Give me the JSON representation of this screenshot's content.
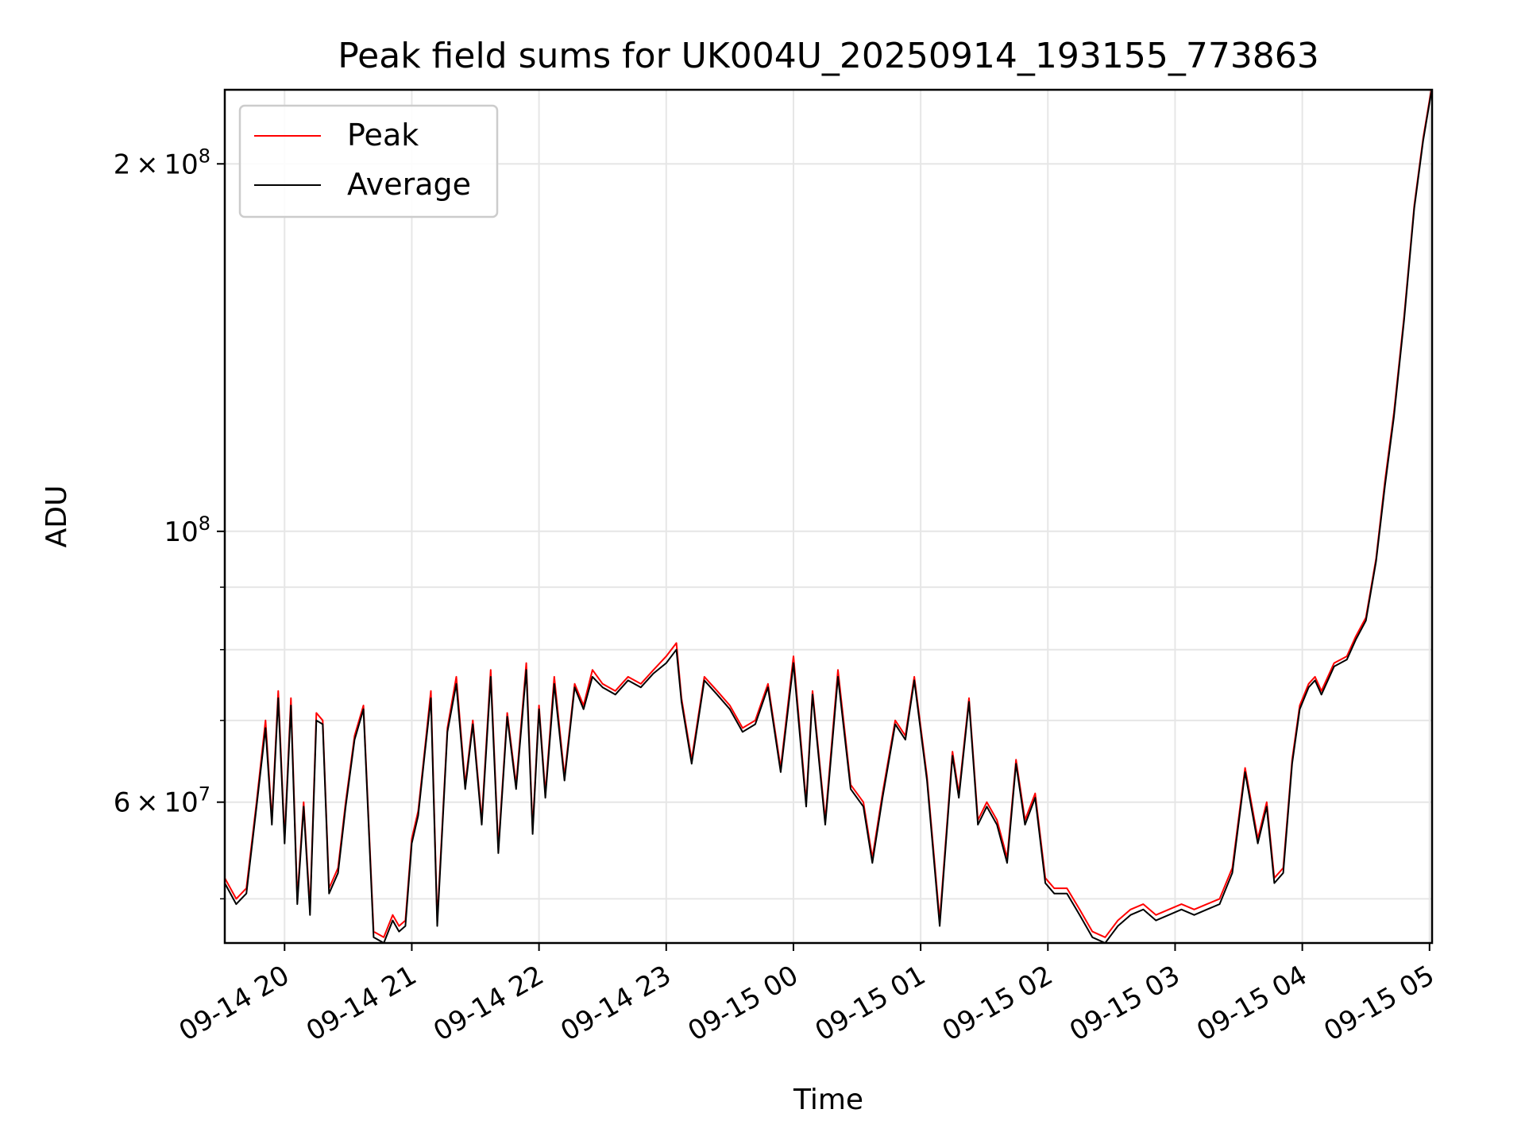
{
  "chart_data": {
    "type": "line",
    "title": "Peak field sums for UK004U_20250914_193155_773863",
    "xlabel": "Time",
    "ylabel": "ADU",
    "x_unit": "hour",
    "x_start": "09-14 19:32",
    "x_end": "09-15 04:59",
    "xlim": [
      19.53,
      29.02
    ],
    "yscale": "log",
    "ylim": [
      46000000,
      230000000
    ],
    "grid": true,
    "legend_position": "top-left",
    "x_ticks": [
      {
        "value": 20,
        "label": "09-14 20"
      },
      {
        "value": 21,
        "label": "09-14 21"
      },
      {
        "value": 22,
        "label": "09-14 22"
      },
      {
        "value": 23,
        "label": "09-14 23"
      },
      {
        "value": 24,
        "label": "09-15 00"
      },
      {
        "value": 25,
        "label": "09-15 01"
      },
      {
        "value": 26,
        "label": "09-15 02"
      },
      {
        "value": 27,
        "label": "09-15 03"
      },
      {
        "value": 28,
        "label": "09-15 04"
      },
      {
        "value": 29,
        "label": "09-15 05"
      }
    ],
    "y_ticks": [
      {
        "value": 60000000,
        "mantissa": "6",
        "base": "10",
        "exponent": "7"
      },
      {
        "value": 100000000,
        "mantissa": "",
        "base": "10",
        "exponent": "8"
      },
      {
        "value": 200000000,
        "mantissa": "2",
        "base": "10",
        "exponent": "8"
      }
    ],
    "y_minor_ticks": [
      50000000,
      70000000,
      80000000,
      90000000
    ],
    "series": [
      {
        "name": "Peak",
        "color": "#ff0000",
        "x": [
          19.53,
          19.62,
          19.7,
          19.78,
          19.85,
          19.9,
          19.95,
          20.0,
          20.05,
          20.1,
          20.15,
          20.2,
          20.25,
          20.3,
          20.35,
          20.42,
          20.48,
          20.55,
          20.62,
          20.7,
          20.78,
          20.85,
          20.9,
          20.95,
          21.0,
          21.05,
          21.1,
          21.15,
          21.2,
          21.28,
          21.35,
          21.42,
          21.48,
          21.55,
          21.62,
          21.68,
          21.75,
          21.82,
          21.9,
          21.95,
          22.0,
          22.05,
          22.12,
          22.2,
          22.28,
          22.35,
          22.42,
          22.5,
          22.6,
          22.7,
          22.8,
          22.9,
          23.0,
          23.08,
          23.12,
          23.2,
          23.3,
          23.4,
          23.5,
          23.6,
          23.7,
          23.8,
          23.9,
          24.0,
          24.1,
          24.15,
          24.25,
          24.35,
          24.45,
          24.55,
          24.62,
          24.7,
          24.8,
          24.88,
          24.95,
          25.05,
          25.15,
          25.25,
          25.3,
          25.38,
          25.45,
          25.52,
          25.6,
          25.68,
          25.75,
          25.82,
          25.9,
          25.98,
          26.05,
          26.15,
          26.25,
          26.35,
          26.45,
          26.55,
          26.65,
          26.75,
          26.85,
          26.95,
          27.05,
          27.15,
          27.25,
          27.35,
          27.45,
          27.55,
          27.65,
          27.72,
          27.78,
          27.85,
          27.92,
          27.98,
          28.05,
          28.1,
          28.15,
          28.25,
          28.35,
          28.42,
          28.5,
          28.58,
          28.65,
          28.72,
          28.8,
          28.88,
          28.95,
          29.02
        ],
        "y": [
          52000000,
          50000000,
          51000000,
          60000000,
          70000000,
          58000000,
          74000000,
          56000000,
          73000000,
          50000000,
          60000000,
          49000000,
          71000000,
          70000000,
          51000000,
          53000000,
          60000000,
          68000000,
          72000000,
          47000000,
          46500000,
          48500000,
          47500000,
          48000000,
          56000000,
          59000000,
          66000000,
          74000000,
          48000000,
          69000000,
          76000000,
          62000000,
          70000000,
          58000000,
          77000000,
          55000000,
          71000000,
          62000000,
          78000000,
          57000000,
          72000000,
          61000000,
          76000000,
          63000000,
          75000000,
          72000000,
          77000000,
          75000000,
          74000000,
          76000000,
          75000000,
          77000000,
          79000000,
          81000000,
          73000000,
          65000000,
          76000000,
          74000000,
          72000000,
          69000000,
          70000000,
          75000000,
          64000000,
          79000000,
          60000000,
          74000000,
          58000000,
          77000000,
          62000000,
          60000000,
          54000000,
          61000000,
          70000000,
          68000000,
          76000000,
          63000000,
          48000000,
          66000000,
          61000000,
          73000000,
          58000000,
          60000000,
          58000000,
          54000000,
          65000000,
          58000000,
          61000000,
          52000000,
          51000000,
          51000000,
          49000000,
          47000000,
          46500000,
          48000000,
          49000000,
          49500000,
          48500000,
          49000000,
          49500000,
          49000000,
          49500000,
          50000000,
          53000000,
          64000000,
          56000000,
          60000000,
          52000000,
          53000000,
          65000000,
          72000000,
          75000000,
          76000000,
          74000000,
          78000000,
          79000000,
          82000000,
          85000000,
          95000000,
          110000000,
          125000000,
          150000000,
          185000000,
          210000000,
          232000000
        ]
      },
      {
        "name": "Average",
        "color": "#000000",
        "x": [
          19.53,
          19.62,
          19.7,
          19.78,
          19.85,
          19.9,
          19.95,
          20.0,
          20.05,
          20.1,
          20.15,
          20.2,
          20.25,
          20.3,
          20.35,
          20.42,
          20.48,
          20.55,
          20.62,
          20.7,
          20.78,
          20.85,
          20.9,
          20.95,
          21.0,
          21.05,
          21.1,
          21.15,
          21.2,
          21.28,
          21.35,
          21.42,
          21.48,
          21.55,
          21.62,
          21.68,
          21.75,
          21.82,
          21.9,
          21.95,
          22.0,
          22.05,
          22.12,
          22.2,
          22.28,
          22.35,
          22.42,
          22.5,
          22.6,
          22.7,
          22.8,
          22.9,
          23.0,
          23.08,
          23.12,
          23.2,
          23.3,
          23.4,
          23.5,
          23.6,
          23.7,
          23.8,
          23.9,
          24.0,
          24.1,
          24.15,
          24.25,
          24.35,
          24.45,
          24.55,
          24.62,
          24.7,
          24.8,
          24.88,
          24.95,
          25.05,
          25.15,
          25.25,
          25.3,
          25.38,
          25.45,
          25.52,
          25.6,
          25.68,
          25.75,
          25.82,
          25.9,
          25.98,
          26.05,
          26.15,
          26.25,
          26.35,
          26.45,
          26.55,
          26.65,
          26.75,
          26.85,
          26.95,
          27.05,
          27.15,
          27.25,
          27.35,
          27.45,
          27.55,
          27.65,
          27.72,
          27.78,
          27.85,
          27.92,
          27.98,
          28.05,
          28.1,
          28.15,
          28.25,
          28.35,
          28.42,
          28.5,
          28.58,
          28.65,
          28.72,
          28.8,
          28.88,
          28.95,
          29.02
        ],
        "y": [
          51500000,
          49500000,
          50500000,
          59500000,
          69000000,
          57500000,
          73000000,
          55500000,
          72000000,
          49500000,
          59500000,
          48500000,
          70000000,
          69500000,
          50500000,
          52500000,
          59500000,
          67500000,
          71500000,
          46500000,
          46000000,
          48000000,
          47000000,
          47500000,
          55500000,
          58500000,
          65500000,
          73000000,
          47500000,
          68500000,
          75000000,
          61500000,
          69500000,
          57500000,
          76000000,
          54500000,
          70500000,
          61500000,
          77000000,
          56500000,
          71500000,
          60500000,
          75000000,
          62500000,
          74500000,
          71500000,
          76000000,
          74500000,
          73500000,
          75500000,
          74500000,
          76500000,
          78000000,
          80000000,
          72500000,
          64500000,
          75500000,
          73500000,
          71500000,
          68500000,
          69500000,
          74500000,
          63500000,
          78000000,
          59500000,
          73500000,
          57500000,
          76000000,
          61500000,
          59500000,
          53500000,
          60500000,
          69500000,
          67500000,
          75500000,
          62500000,
          47500000,
          65500000,
          60500000,
          72500000,
          57500000,
          59500000,
          57500000,
          53500000,
          64500000,
          57500000,
          60500000,
          51500000,
          50500000,
          50500000,
          48500000,
          46500000,
          46000000,
          47500000,
          48500000,
          49000000,
          48000000,
          48500000,
          49000000,
          48500000,
          49000000,
          49500000,
          52500000,
          63500000,
          55500000,
          59500000,
          51500000,
          52500000,
          64500000,
          71500000,
          74500000,
          75500000,
          73500000,
          77500000,
          78500000,
          81500000,
          84500000,
          94500000,
          109000000,
          124000000,
          149000000,
          184000000,
          209000000,
          231000000
        ]
      }
    ]
  }
}
